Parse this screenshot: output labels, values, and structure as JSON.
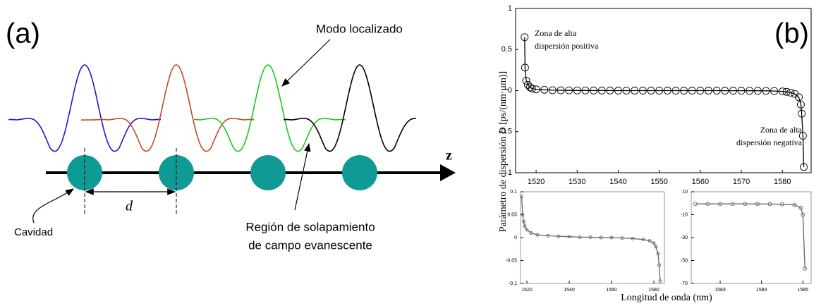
{
  "diagram": {
    "panel_label": "(a)",
    "mode_label": "Modo localizado",
    "axis_label": "z",
    "cavity_label": "Cavidad",
    "spacing_label": "d",
    "overlap_label": [
      "Región de solapamiento",
      "de campo evanescente"
    ]
  },
  "panel_b": {
    "panel_label": "(b)",
    "ylabel": "Parámetro de dispersión D [ps/(nm·μm)]",
    "xlabel": "Longitud de onda (nm)"
  },
  "chart_data": [
    {
      "type": "line",
      "x": [
        1517.2,
        1517.3,
        1517.6,
        1518,
        1518.5,
        1519,
        1520,
        1522,
        1524,
        1526,
        1528,
        1530,
        1532,
        1534,
        1536,
        1538,
        1540,
        1542,
        1544,
        1546,
        1548,
        1550,
        1552,
        1554,
        1556,
        1558,
        1560,
        1562,
        1564,
        1566,
        1568,
        1570,
        1572,
        1574,
        1576,
        1578,
        1580,
        1581,
        1582,
        1583,
        1584,
        1584.5,
        1584.7,
        1585,
        1585.2
      ],
      "values": [
        0.65,
        0.28,
        0.12,
        0.07,
        0.04,
        0.025,
        0.015,
        0.01,
        0.005,
        0.004,
        0.003,
        0.002,
        0.002,
        0.001,
        0.001,
        0.001,
        0,
        0,
        0,
        0,
        0,
        0,
        0,
        0,
        0,
        0,
        0,
        0,
        0,
        -0.001,
        -0.001,
        -0.001,
        -0.002,
        -0.002,
        -0.003,
        -0.005,
        -0.01,
        -0.015,
        -0.025,
        -0.04,
        -0.08,
        -0.17,
        -0.28,
        -0.55,
        -0.93
      ],
      "color": "#000000",
      "xlim": [
        1515,
        1587
      ],
      "ylim": [
        -1,
        1
      ],
      "xticks": [
        1520,
        1530,
        1540,
        1550,
        1560,
        1570,
        1580
      ],
      "yticks": [
        -1,
        -0.5,
        0,
        0.5,
        1
      ],
      "annotations": [
        [
          "Zona de alta",
          "dispersión positiva"
        ],
        [
          "Zona de alta",
          "dispersión negativa"
        ]
      ]
    },
    {
      "type": "line",
      "x": [
        1517.5,
        1518,
        1518.5,
        1519,
        1520,
        1522,
        1525,
        1530,
        1535,
        1540,
        1545,
        1550,
        1555,
        1560,
        1565,
        1570,
        1575,
        1578,
        1580,
        1581,
        1582,
        1582.5,
        1583
      ],
      "values": [
        0.09,
        0.05,
        0.035,
        0.025,
        0.017,
        0.01,
        0.006,
        0.004,
        0.003,
        0.002,
        0.001,
        0.001,
        0,
        0,
        -0.001,
        -0.002,
        -0.004,
        -0.007,
        -0.012,
        -0.02,
        -0.035,
        -0.06,
        -0.095
      ],
      "color": "#666666",
      "xlim": [
        1517,
        1585
      ],
      "ylim": [
        -0.1,
        0.1
      ],
      "xticks": [
        1520,
        1540,
        1560,
        1580
      ],
      "yticks": [
        -0.1,
        -0.05,
        0,
        0.05,
        0.1
      ]
    },
    {
      "type": "line",
      "x": [
        1582.4,
        1582.7,
        1583,
        1583.3,
        1583.6,
        1583.9,
        1584.2,
        1584.5,
        1584.8,
        1584.95,
        1585,
        1585.05
      ],
      "values": [
        -0.5,
        -0.5,
        -0.5,
        -0.5,
        -0.5,
        -0.6,
        -0.7,
        -0.9,
        -1.5,
        -4,
        -10,
        -57
      ],
      "color": "#666666",
      "xlim": [
        1582.3,
        1585.2
      ],
      "ylim": [
        -70,
        10
      ],
      "xticks": [
        1583,
        1584,
        1585
      ],
      "yticks": [
        -70,
        -50,
        -30,
        -10,
        10
      ]
    }
  ]
}
